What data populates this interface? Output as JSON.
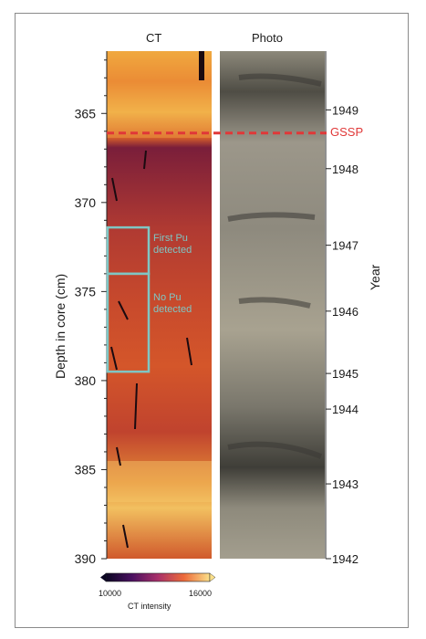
{
  "panels": {
    "ct_title": "CT",
    "photo_title": "Photo"
  },
  "axes": {
    "depth_label": "Depth in core (cm)",
    "depth_ticks": [
      365,
      370,
      375,
      380,
      385,
      390
    ],
    "depth_range": [
      361.5,
      390
    ],
    "year_label": "Year",
    "year_ticks": [
      {
        "year": "1949",
        "depth": 364.8
      },
      {
        "year": "1948",
        "depth": 368.1
      },
      {
        "year": "1947",
        "depth": 372.4
      },
      {
        "year": "1946",
        "depth": 376.1
      },
      {
        "year": "1945",
        "depth": 379.6
      },
      {
        "year": "1944",
        "depth": 381.6
      },
      {
        "year": "1943",
        "depth": 385.8
      },
      {
        "year": "1942",
        "depth": 390.0
      }
    ]
  },
  "gssp": {
    "label": "GSSP",
    "depth": 366.1,
    "color": "#e03838"
  },
  "annotations": {
    "first_pu": {
      "line1": "First Pu",
      "line2": "detected",
      "from": 371.4,
      "to": 374.0
    },
    "no_pu": {
      "line1": "No Pu",
      "line2": "detected",
      "from": 374.0,
      "to": 379.5
    },
    "color": "#7fc6c4"
  },
  "colorbar": {
    "min": "10000",
    "max": "16000",
    "label": "CT intensity"
  }
}
